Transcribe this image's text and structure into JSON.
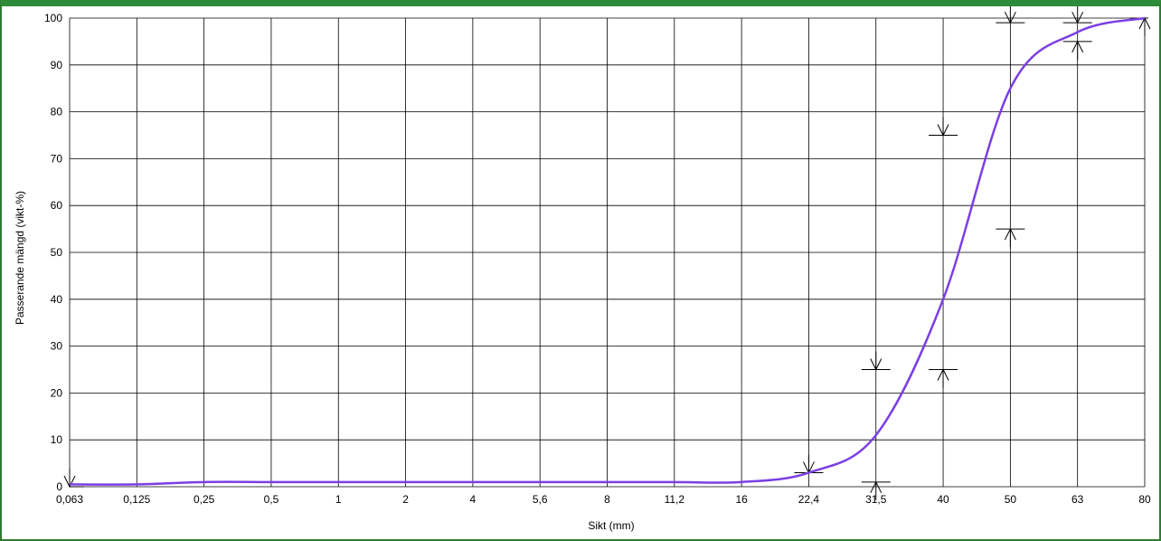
{
  "chart_data": {
    "type": "line",
    "xlabel": "Sikt (mm)",
    "ylabel": "Passerande mängd (vikt-%)",
    "x_scale": "log",
    "x_ticks": [
      "0,063",
      "0,125",
      "0,25",
      "0,5",
      "1",
      "2",
      "4",
      "5,6",
      "8",
      "11,2",
      "16",
      "22,4",
      "31,5",
      "40",
      "50",
      "63",
      "80"
    ],
    "y_ticks": [
      "0",
      "10",
      "20",
      "30",
      "40",
      "50",
      "60",
      "70",
      "80",
      "90",
      "100"
    ],
    "ylim": [
      0,
      100
    ],
    "grid": true,
    "series": [
      {
        "color": "#7b3fe4",
        "x": [
          0.063,
          0.125,
          0.25,
          0.5,
          1,
          2,
          4,
          5.6,
          8,
          11.2,
          16,
          22.4,
          31.5,
          40,
          50,
          63,
          80
        ],
        "y": [
          0.5,
          0.5,
          1,
          1,
          1,
          1,
          1,
          1,
          1,
          1,
          1,
          3,
          11,
          40,
          85,
          97,
          100
        ]
      }
    ],
    "limit_markers": [
      {
        "sieve": 0.063,
        "value": 0,
        "direction": "down"
      },
      {
        "sieve": 22.4,
        "value": 3,
        "direction": "down"
      },
      {
        "sieve": 31.5,
        "value": 1,
        "direction": "up"
      },
      {
        "sieve": 31.5,
        "value": 25,
        "direction": "down"
      },
      {
        "sieve": 40,
        "value": 25,
        "direction": "up"
      },
      {
        "sieve": 40,
        "value": 75,
        "direction": "down"
      },
      {
        "sieve": 50,
        "value": 55,
        "direction": "up"
      },
      {
        "sieve": 50,
        "value": 99,
        "direction": "down"
      },
      {
        "sieve": 63,
        "value": 99,
        "direction": "down"
      },
      {
        "sieve": 63,
        "value": 95,
        "direction": "up"
      },
      {
        "sieve": 80,
        "value": 100,
        "direction": "up"
      }
    ]
  }
}
